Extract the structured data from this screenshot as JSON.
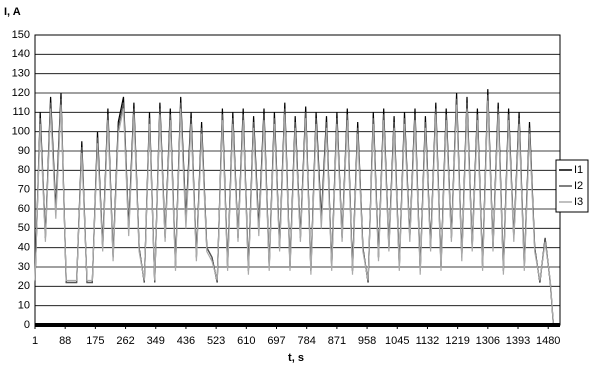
{
  "chart_data": {
    "type": "line",
    "y_label": "I, A",
    "x_label": "t, s",
    "x": [
      1,
      16,
      31,
      46,
      61,
      76,
      91,
      106,
      121,
      136,
      151,
      166,
      181,
      196,
      211,
      226,
      241,
      256,
      271,
      286,
      301,
      316,
      331,
      346,
      361,
      376,
      391,
      406,
      421,
      436,
      451,
      466,
      481,
      496,
      511,
      526,
      541,
      556,
      571,
      586,
      601,
      616,
      631,
      646,
      661,
      676,
      691,
      706,
      721,
      736,
      751,
      766,
      781,
      796,
      811,
      826,
      841,
      856,
      871,
      886,
      901,
      916,
      931,
      946,
      961,
      976,
      991,
      1006,
      1021,
      1036,
      1051,
      1066,
      1081,
      1096,
      1111,
      1126,
      1141,
      1156,
      1171,
      1186,
      1201,
      1216,
      1231,
      1246,
      1261,
      1276,
      1291,
      1306,
      1321,
      1336,
      1351,
      1366,
      1381,
      1396,
      1411,
      1426,
      1441,
      1456,
      1471,
      1486,
      1495
    ],
    "series": [
      {
        "name": "I1",
        "color": "#000000",
        "values": [
          22,
          110,
          45,
          118,
          60,
          120,
          22,
          22,
          22,
          95,
          22,
          22,
          100,
          40,
          112,
          35,
          105,
          118,
          50,
          115,
          40,
          22,
          110,
          22,
          115,
          45,
          112,
          30,
          118,
          55,
          110,
          35,
          105,
          40,
          35,
          22,
          112,
          30,
          110,
          45,
          112,
          28,
          108,
          50,
          112,
          30,
          110,
          40,
          115,
          30,
          108,
          45,
          113,
          28,
          110,
          55,
          108,
          30,
          110,
          45,
          112,
          28,
          105,
          40,
          22,
          110,
          35,
          112,
          40,
          108,
          30,
          110,
          45,
          112,
          28,
          108,
          40,
          115,
          30,
          112,
          45,
          120,
          35,
          118,
          40,
          112,
          30,
          122,
          40,
          115,
          28,
          112,
          45,
          110,
          30,
          105,
          40,
          22,
          45,
          22,
          0
        ]
      },
      {
        "name": "I2",
        "color": "#555555",
        "values": [
          22,
          107,
          45,
          115,
          58,
          117,
          22,
          22,
          22,
          92,
          22,
          22,
          97,
          40,
          109,
          35,
          102,
          115,
          48,
          112,
          40,
          22,
          107,
          22,
          112,
          45,
          109,
          30,
          115,
          53,
          107,
          35,
          102,
          40,
          35,
          22,
          109,
          30,
          107,
          45,
          109,
          28,
          105,
          48,
          109,
          30,
          107,
          40,
          112,
          30,
          105,
          45,
          110,
          28,
          107,
          53,
          105,
          30,
          107,
          45,
          109,
          28,
          102,
          40,
          22,
          107,
          35,
          109,
          40,
          105,
          30,
          107,
          45,
          109,
          28,
          105,
          40,
          112,
          30,
          109,
          45,
          117,
          35,
          115,
          40,
          109,
          30,
          119,
          40,
          112,
          28,
          109,
          45,
          107,
          30,
          102,
          40,
          22,
          45,
          22,
          0
        ]
      },
      {
        "name": "I3",
        "color": "#aaaaaa",
        "values": [
          23,
          104,
          43,
          112,
          55,
          114,
          23,
          23,
          23,
          89,
          23,
          23,
          94,
          38,
          106,
          33,
          99,
          112,
          46,
          109,
          38,
          23,
          104,
          23,
          109,
          43,
          106,
          28,
          112,
          50,
          104,
          33,
          99,
          38,
          33,
          23,
          106,
          28,
          104,
          43,
          106,
          26,
          102,
          46,
          106,
          28,
          104,
          38,
          109,
          28,
          102,
          43,
          107,
          26,
          104,
          50,
          102,
          28,
          104,
          43,
          106,
          26,
          99,
          38,
          23,
          104,
          33,
          106,
          38,
          102,
          28,
          104,
          43,
          106,
          26,
          102,
          38,
          109,
          28,
          106,
          43,
          114,
          33,
          112,
          38,
          106,
          28,
          116,
          38,
          109,
          26,
          106,
          43,
          104,
          28,
          99,
          38,
          23,
          43,
          23,
          0
        ]
      }
    ],
    "xlim": [
      1,
      1514
    ],
    "xticks": [
      1,
      88,
      175,
      262,
      349,
      436,
      523,
      610,
      697,
      784,
      871,
      958,
      1045,
      1132,
      1219,
      1306,
      1393,
      1480
    ],
    "ylim": [
      0,
      150
    ],
    "yticks": [
      0,
      10,
      20,
      30,
      40,
      50,
      60,
      70,
      80,
      90,
      100,
      110,
      120,
      130,
      140,
      150
    ],
    "grid": true,
    "legend": "right"
  }
}
